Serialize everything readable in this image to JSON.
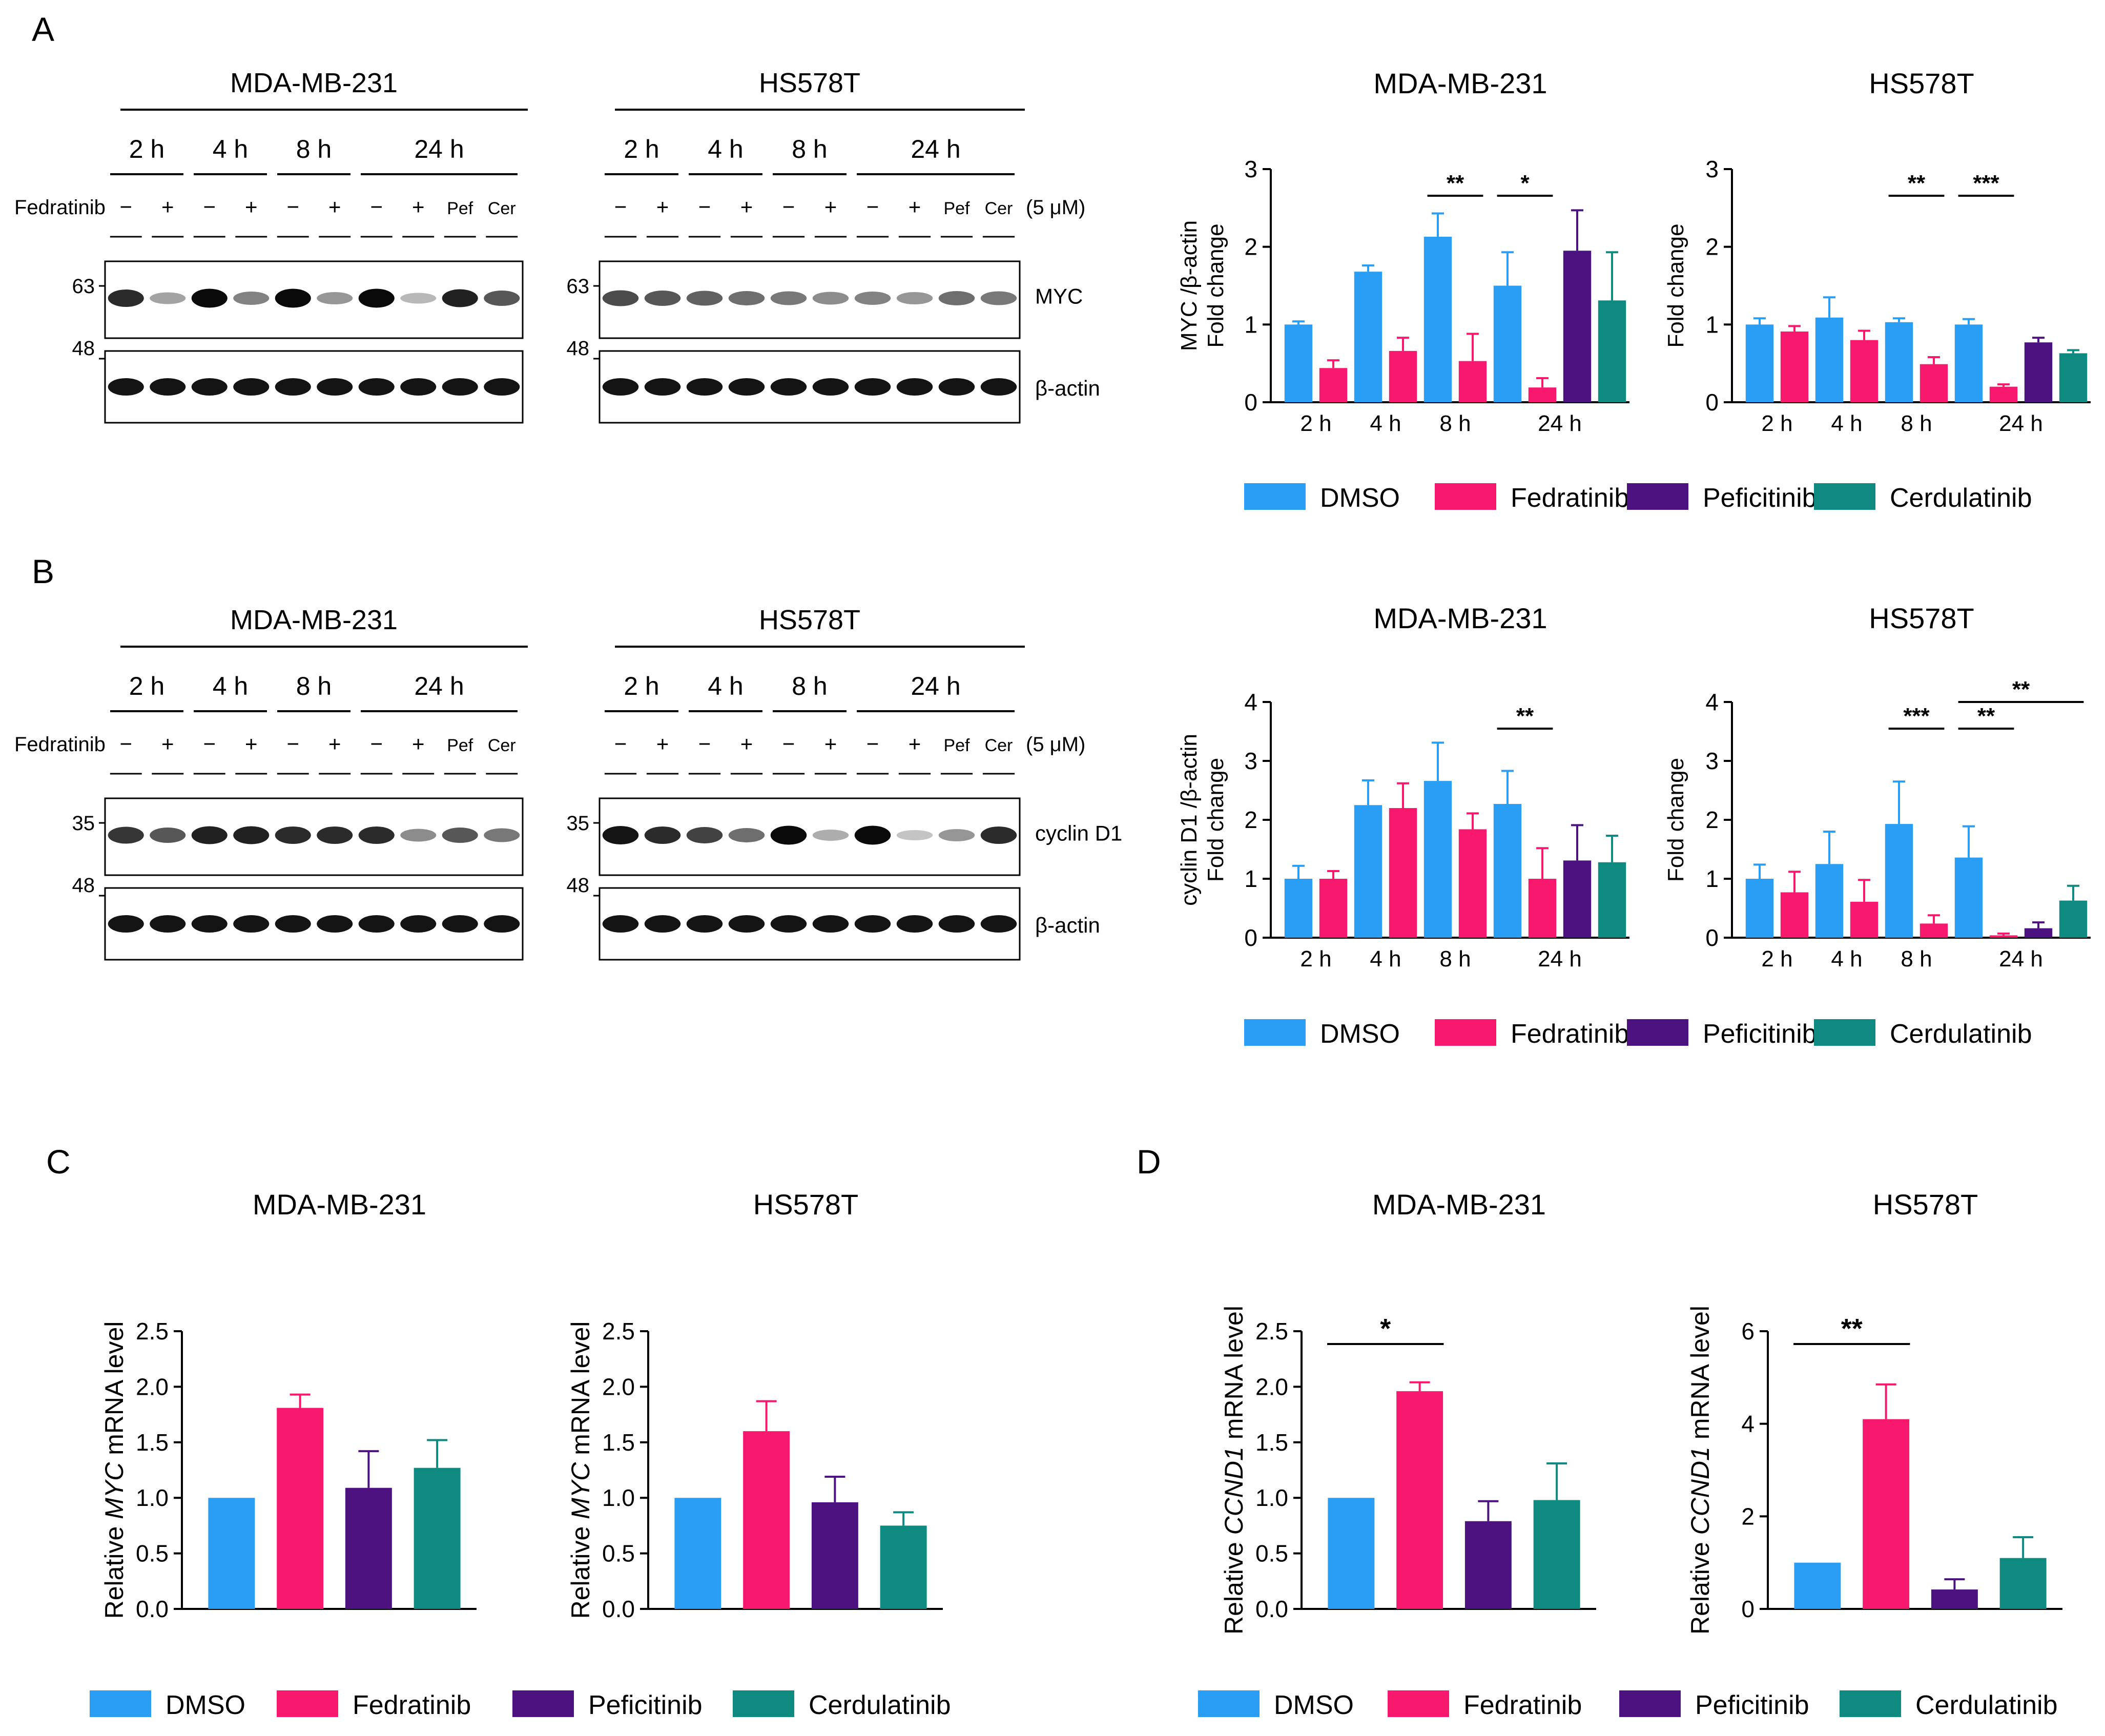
{
  "colors": {
    "dmso": "#2a9df4",
    "fedratinib": "#f8186e",
    "peficitinib": "#4c1380",
    "cerdulatinib": "#0f8a80",
    "axis": "#000000"
  },
  "panel_labels": {
    "a": "A",
    "b": "B",
    "c": "C",
    "d": "D"
  },
  "legend": {
    "dmso": "DMSO",
    "fedratinib": "Fedratinib",
    "peficitinib": "Peficitinib",
    "cerdulatinib": "Cerdulatinib"
  },
  "blots": {
    "a": {
      "left_title": "MDA-MB-231",
      "right_title": "HS578T",
      "times": [
        "2 h",
        "4 h",
        "8 h",
        "24 h"
      ],
      "treatment_label": "Fedratinib",
      "lane_marks_left": [
        "−",
        "+",
        "−",
        "+",
        "−",
        "+",
        "−",
        "+",
        "Pef",
        "Cer"
      ],
      "lane_marks_right": [
        "−",
        "+",
        "−",
        "+",
        "−",
        "+",
        "−",
        "+",
        "Pef",
        "Cer"
      ],
      "dose": "(5 μM)",
      "marker_top": "63",
      "marker_bottom": "48",
      "protein": "MYC",
      "loading": "β-actin"
    },
    "b": {
      "left_title": "MDA-MB-231",
      "right_title": "HS578T",
      "times": [
        "2 h",
        "4 h",
        "8 h",
        "24 h"
      ],
      "treatment_label": "Fedratinib",
      "lane_marks_left": [
        "−",
        "+",
        "−",
        "+",
        "−",
        "+",
        "−",
        "+",
        "Pef",
        "Cer"
      ],
      "lane_marks_right": [
        "−",
        "+",
        "−",
        "+",
        "−",
        "+",
        "−",
        "+",
        "Pef",
        "Cer"
      ],
      "dose": "(5 μM)",
      "marker_top": "35",
      "marker_bottom": "48",
      "protein": "cyclin D1",
      "loading": "β-actin"
    }
  },
  "chart_data": [
    {
      "id": "a1",
      "type": "bar",
      "title": "MDA-MB-231",
      "ylabel": "MYC /β-actin",
      "ylabel2": "Fold change",
      "ylim": [
        0,
        3
      ],
      "yticks": [
        "0",
        "1",
        "2",
        "3"
      ],
      "categories": [
        "2 h",
        "4 h",
        "8 h",
        "24 h"
      ],
      "series": [
        {
          "name": "DMSO",
          "values": [
            1.0,
            1.68,
            2.13,
            1.5
          ],
          "errors": [
            0.04,
            0.08,
            0.3,
            0.43
          ]
        },
        {
          "name": "Fedratinib",
          "values": [
            0.44,
            0.66,
            0.53,
            0.19
          ],
          "errors": [
            0.1,
            0.17,
            0.35,
            0.12
          ]
        },
        {
          "name": "Peficitinib",
          "values": [
            null,
            null,
            null,
            1.95
          ],
          "errors": [
            null,
            null,
            null,
            0.52
          ]
        },
        {
          "name": "Cerdulatinib",
          "values": [
            null,
            null,
            null,
            1.31
          ],
          "errors": [
            null,
            null,
            null,
            0.62
          ]
        }
      ],
      "significance": [
        {
          "label": "**",
          "group": 2
        },
        {
          "label": "*",
          "group": 3
        }
      ]
    },
    {
      "id": "a2",
      "type": "bar",
      "title": "HS578T",
      "ylabel": "Fold change",
      "ylim": [
        0,
        3
      ],
      "yticks": [
        "0",
        "1",
        "2",
        "3"
      ],
      "categories": [
        "2 h",
        "4 h",
        "8 h",
        "24 h"
      ],
      "series": [
        {
          "name": "DMSO",
          "values": [
            1.0,
            1.09,
            1.03,
            1.0
          ],
          "errors": [
            0.08,
            0.26,
            0.05,
            0.07
          ]
        },
        {
          "name": "Fedratinib",
          "values": [
            0.91,
            0.8,
            0.49,
            0.2
          ],
          "errors": [
            0.07,
            0.12,
            0.09,
            0.03
          ]
        },
        {
          "name": "Peficitinib",
          "values": [
            null,
            null,
            null,
            0.77
          ],
          "errors": [
            null,
            null,
            null,
            0.06
          ]
        },
        {
          "name": "Cerdulatinib",
          "values": [
            null,
            null,
            null,
            0.63
          ],
          "errors": [
            null,
            null,
            null,
            0.04
          ]
        }
      ],
      "significance": [
        {
          "label": "**",
          "group": 2
        },
        {
          "label": "***",
          "group": 3
        }
      ]
    },
    {
      "id": "b1",
      "type": "bar",
      "title": "MDA-MB-231",
      "ylabel": "cyclin D1 /β-actin",
      "ylabel2": "Fold change",
      "ylim": [
        0,
        4
      ],
      "yticks": [
        "0",
        "1",
        "2",
        "3",
        "4"
      ],
      "categories": [
        "2 h",
        "4 h",
        "8 h",
        "24 h"
      ],
      "series": [
        {
          "name": "DMSO",
          "values": [
            1.0,
            2.25,
            2.66,
            2.27
          ],
          "errors": [
            0.22,
            0.42,
            0.65,
            0.56
          ]
        },
        {
          "name": "Fedratinib",
          "values": [
            1.0,
            2.2,
            1.84,
            1.0
          ],
          "errors": [
            0.13,
            0.42,
            0.27,
            0.52
          ]
        },
        {
          "name": "Peficitinib",
          "values": [
            null,
            null,
            null,
            1.31
          ],
          "errors": [
            null,
            null,
            null,
            0.6
          ]
        },
        {
          "name": "Cerdulatinib",
          "values": [
            null,
            null,
            null,
            1.28
          ],
          "errors": [
            null,
            null,
            null,
            0.45
          ]
        }
      ],
      "significance": [
        {
          "label": "**",
          "group": 3
        }
      ]
    },
    {
      "id": "b2",
      "type": "bar",
      "title": "HS578T",
      "ylabel": "Fold change",
      "ylim": [
        0,
        4
      ],
      "yticks": [
        "0",
        "1",
        "2",
        "3",
        "4"
      ],
      "categories": [
        "2 h",
        "4 h",
        "8 h",
        "24 h"
      ],
      "series": [
        {
          "name": "DMSO",
          "values": [
            1.0,
            1.25,
            1.93,
            1.36
          ],
          "errors": [
            0.24,
            0.55,
            0.72,
            0.53
          ]
        },
        {
          "name": "Fedratinib",
          "values": [
            0.77,
            0.61,
            0.24,
            0.04
          ],
          "errors": [
            0.35,
            0.37,
            0.14,
            0.03
          ]
        },
        {
          "name": "Peficitinib",
          "values": [
            null,
            null,
            null,
            0.16
          ],
          "errors": [
            null,
            null,
            null,
            0.1
          ]
        },
        {
          "name": "Cerdulatinib",
          "values": [
            null,
            null,
            null,
            0.63
          ],
          "errors": [
            null,
            null,
            null,
            0.25
          ]
        }
      ],
      "significance": [
        {
          "label": "***",
          "group": 2
        },
        {
          "label": "**",
          "group": 3
        },
        {
          "label": "**",
          "group": 3,
          "wide": true
        }
      ]
    },
    {
      "id": "c1",
      "type": "bar",
      "title": "MDA-MB-231",
      "ylabel_prefix": "Relative ",
      "ylabel_italic": "MYC",
      "ylabel_suffix": " mRNA level",
      "ylim": [
        0,
        2.5
      ],
      "yticks": [
        "0.0",
        "0.5",
        "1.0",
        "1.5",
        "2.0",
        "2.5"
      ],
      "categories": [
        "DMSO",
        "Fedratinib",
        "Peficitinib",
        "Cerdulatinib"
      ],
      "values": [
        1.0,
        1.81,
        1.09,
        1.27
      ],
      "errors": [
        0.0,
        0.12,
        0.33,
        0.25
      ]
    },
    {
      "id": "c2",
      "type": "bar",
      "title": "HS578T",
      "ylabel_prefix": "Relative ",
      "ylabel_italic": "MYC",
      "ylabel_suffix": " mRNA level",
      "ylim": [
        0,
        2.5
      ],
      "yticks": [
        "0.0",
        "0.5",
        "1.0",
        "1.5",
        "2.0",
        "2.5"
      ],
      "categories": [
        "DMSO",
        "Fedratinib",
        "Peficitinib",
        "Cerdulatinib"
      ],
      "values": [
        1.0,
        1.6,
        0.96,
        0.75
      ],
      "errors": [
        0.0,
        0.27,
        0.23,
        0.12
      ]
    },
    {
      "id": "d1",
      "type": "bar",
      "title": "MDA-MB-231",
      "ylabel_prefix": "Relative ",
      "ylabel_italic": "CCND1",
      "ylabel_suffix": " mRNA level",
      "ylim": [
        0,
        2.5
      ],
      "yticks": [
        "0.0",
        "0.5",
        "1.0",
        "1.5",
        "2.0",
        "2.5"
      ],
      "categories": [
        "DMSO",
        "Fedratinib",
        "Peficitinib",
        "Cerdulatinib"
      ],
      "values": [
        1.0,
        1.96,
        0.79,
        0.98
      ],
      "errors": [
        0.0,
        0.08,
        0.18,
        0.33
      ],
      "significance": [
        {
          "label": "*",
          "from": 0,
          "to": 1
        }
      ]
    },
    {
      "id": "d2",
      "type": "bar",
      "title": "HS578T",
      "ylabel_prefix": "Relative ",
      "ylabel_italic": "CCND1",
      "ylabel_suffix": " mRNA level",
      "ylim": [
        0,
        6
      ],
      "yticks": [
        "0",
        "2",
        "4",
        "6"
      ],
      "categories": [
        "DMSO",
        "Fedratinib",
        "Peficitinib",
        "Cerdulatinib"
      ],
      "values": [
        1.0,
        4.1,
        0.42,
        1.1
      ],
      "errors": [
        0.0,
        0.75,
        0.22,
        0.45
      ],
      "significance": [
        {
          "label": "**",
          "from": 0,
          "to": 1
        }
      ]
    }
  ]
}
